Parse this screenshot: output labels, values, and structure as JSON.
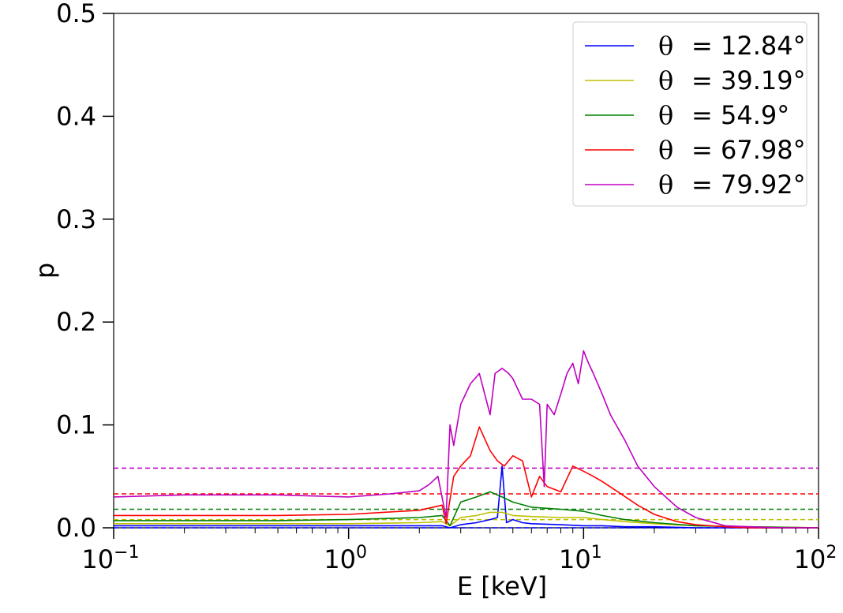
{
  "chart_data": {
    "type": "line",
    "xlabel": "E [keV]",
    "ylabel": "p",
    "xscale": "log",
    "xlim": [
      0.1,
      100
    ],
    "ylim": [
      0,
      0.5
    ],
    "x_ticks": [
      {
        "base": "10",
        "exp": "−1"
      },
      {
        "base": "10",
        "exp": "0"
      },
      {
        "base": "10",
        "exp": "1"
      },
      {
        "base": "10",
        "exp": "2"
      }
    ],
    "y_ticks": [
      "0.0",
      "0.1",
      "0.2",
      "0.3",
      "0.4",
      "0.5"
    ],
    "legend_position": "top-right",
    "grid": false,
    "legend_symbol": "θ",
    "series": [
      {
        "name": "= 12.84°",
        "color": "#0000ff",
        "mean": 0.0,
        "x": [
          0.1,
          0.5,
          1,
          2,
          2.5,
          2.7,
          3,
          3.5,
          4,
          4.3,
          4.5,
          4.7,
          5,
          5.5,
          6,
          8,
          10,
          12,
          15,
          20,
          30,
          50,
          100
        ],
        "y": [
          0.002,
          0.002,
          0.002,
          0.002,
          0.002,
          0.0,
          0.003,
          0.005,
          0.008,
          0.01,
          0.06,
          0.005,
          0.008,
          0.005,
          0.004,
          0.003,
          0.002,
          0.002,
          0.001,
          0.001,
          0.0,
          0.0,
          0.0
        ]
      },
      {
        "name": "= 39.19°",
        "color": "#bfbf00",
        "mean": 0.008,
        "x": [
          0.1,
          0.5,
          1,
          2,
          2.5,
          2.7,
          3,
          3.5,
          4,
          4.5,
          5,
          6,
          8,
          10,
          12,
          15,
          20,
          30,
          50,
          100
        ],
        "y": [
          0.004,
          0.004,
          0.004,
          0.005,
          0.006,
          0.002,
          0.01,
          0.012,
          0.015,
          0.015,
          0.012,
          0.011,
          0.01,
          0.01,
          0.008,
          0.006,
          0.004,
          0.002,
          0.001,
          0.0
        ]
      },
      {
        "name": "= 54.9°",
        "color": "#008000",
        "mean": 0.018,
        "x": [
          0.1,
          0.5,
          1,
          2,
          2.5,
          2.7,
          3,
          3.5,
          4,
          4.5,
          5,
          6,
          8,
          10,
          12,
          15,
          20,
          30,
          50,
          100
        ],
        "y": [
          0.007,
          0.007,
          0.008,
          0.01,
          0.012,
          0.002,
          0.025,
          0.03,
          0.035,
          0.03,
          0.025,
          0.02,
          0.018,
          0.016,
          0.012,
          0.008,
          0.005,
          0.002,
          0.001,
          0.0
        ]
      },
      {
        "name": "= 67.98°",
        "color": "#ff0000",
        "mean": 0.033,
        "x": [
          0.1,
          0.5,
          1,
          2,
          2.5,
          2.6,
          2.8,
          3,
          3.3,
          3.6,
          4,
          4.3,
          4.6,
          5,
          5.5,
          6,
          6.5,
          7,
          8,
          9,
          10,
          11,
          12,
          14,
          17,
          20,
          25,
          30,
          40,
          50,
          70,
          100
        ],
        "y": [
          0.012,
          0.012,
          0.013,
          0.017,
          0.022,
          0.004,
          0.05,
          0.06,
          0.07,
          0.098,
          0.075,
          0.065,
          0.06,
          0.07,
          0.065,
          0.03,
          0.05,
          0.04,
          0.035,
          0.06,
          0.055,
          0.05,
          0.045,
          0.035,
          0.022,
          0.013,
          0.006,
          0.003,
          0.001,
          0.0,
          0.0,
          0.0
        ]
      },
      {
        "name": "= 79.92°",
        "color": "#bf00bf",
        "mean": 0.058,
        "x": [
          0.1,
          0.2,
          0.5,
          1,
          1.5,
          2,
          2.2,
          2.4,
          2.6,
          2.7,
          2.8,
          3,
          3.3,
          3.6,
          4,
          4.2,
          4.5,
          4.8,
          5,
          5.5,
          6,
          6.5,
          6.8,
          7,
          7.5,
          8,
          8.5,
          9,
          9.5,
          10,
          10.5,
          11,
          12,
          13,
          15,
          17,
          20,
          25,
          30,
          40,
          50,
          70,
          100
        ],
        "y": [
          0.03,
          0.032,
          0.032,
          0.03,
          0.033,
          0.036,
          0.042,
          0.05,
          0.01,
          0.1,
          0.08,
          0.12,
          0.14,
          0.15,
          0.11,
          0.15,
          0.155,
          0.15,
          0.145,
          0.125,
          0.125,
          0.12,
          0.04,
          0.12,
          0.11,
          0.13,
          0.15,
          0.16,
          0.14,
          0.172,
          0.16,
          0.15,
          0.13,
          0.11,
          0.085,
          0.06,
          0.04,
          0.02,
          0.01,
          0.002,
          0.001,
          0.0,
          0.0
        ]
      }
    ]
  }
}
